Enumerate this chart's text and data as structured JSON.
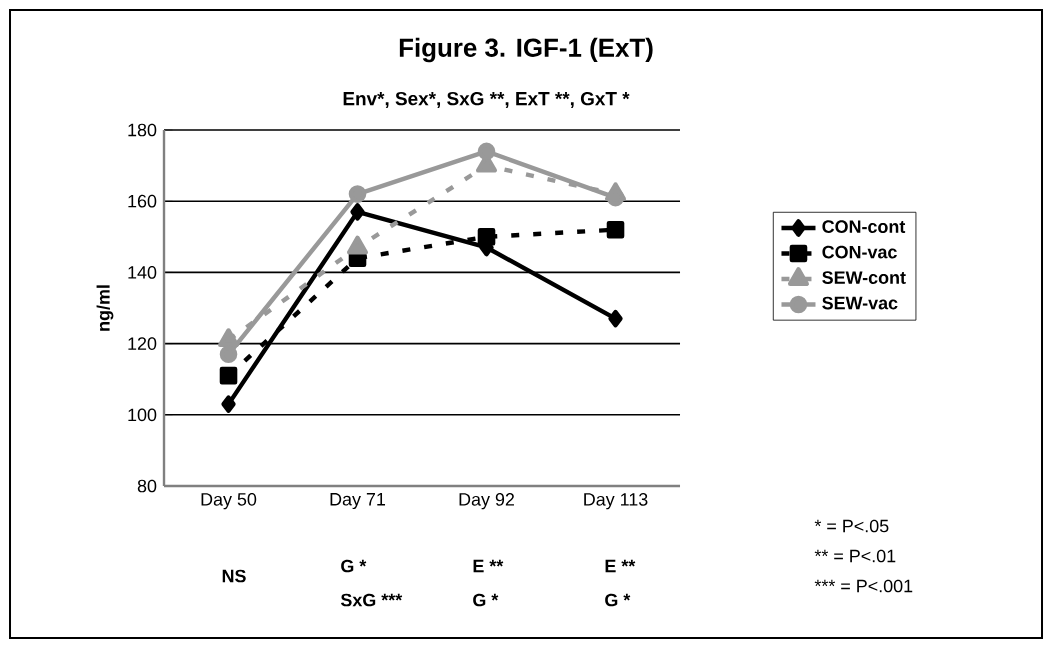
{
  "chart_data": {
    "type": "line",
    "title": "Figure 3.  IGF-1 (ExT)",
    "subtitle": "Env*, Sex*, SxG **, ExT **, GxT *",
    "ylabel": "ng/ml",
    "categories": [
      "Day 50",
      "Day 71",
      "Day 92",
      "Day 113"
    ],
    "series": [
      {
        "name": "CON-cont",
        "color": "#000000",
        "values": [
          103,
          157,
          147,
          127
        ],
        "marker": "diamond",
        "line_style": "solid"
      },
      {
        "name": "CON-vac",
        "color": "#000000",
        "values": [
          111,
          144,
          150,
          152
        ],
        "marker": "square",
        "line_style": "dashed"
      },
      {
        "name": "SEW-cont",
        "color": "#999999",
        "values": [
          121,
          147,
          170,
          162
        ],
        "marker": "triangle",
        "line_style": "dashed"
      },
      {
        "name": "SEW-vac",
        "color": "#999999",
        "values": [
          117,
          162,
          174,
          161
        ],
        "marker": "circle",
        "line_style": "solid"
      }
    ],
    "ylim": [
      80,
      180
    ],
    "yticks": [
      80,
      100,
      120,
      140,
      160,
      180
    ],
    "grid": "y",
    "legend": "right",
    "annotations": [
      "NS",
      "G *",
      "SxG ***",
      "E **",
      "G *",
      "E **",
      "G *",
      "*   = P<.05",
      "**  = P<.01",
      "*** = P<.001"
    ]
  }
}
